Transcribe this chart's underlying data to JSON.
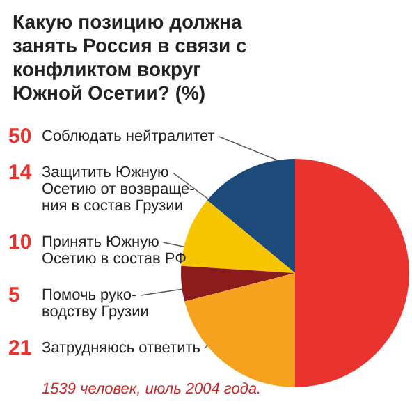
{
  "chart_data": {
    "type": "pie",
    "title": "Какую позицию должна занять Россия в связи с конфликтом вокруг Южной Осетии? (%)",
    "categories": [
      "Соблюдать нейтралитет",
      "Защитить Южную\nОсетию от возвраще-\nния в состав Грузии",
      "Принять Южную\nОсетию в состав РФ",
      "Помочь руко-\nводству Грузии",
      "Затрудняюсь ответить"
    ],
    "values": [
      50,
      14,
      10,
      5,
      21
    ],
    "colors": [
      "#e8332f",
      "#1c4a7a",
      "#f7c600",
      "#8c1c1c",
      "#f6a21e"
    ],
    "data_labels": true,
    "annotations": [
      "1539 человек, июль 2004 года."
    ]
  }
}
